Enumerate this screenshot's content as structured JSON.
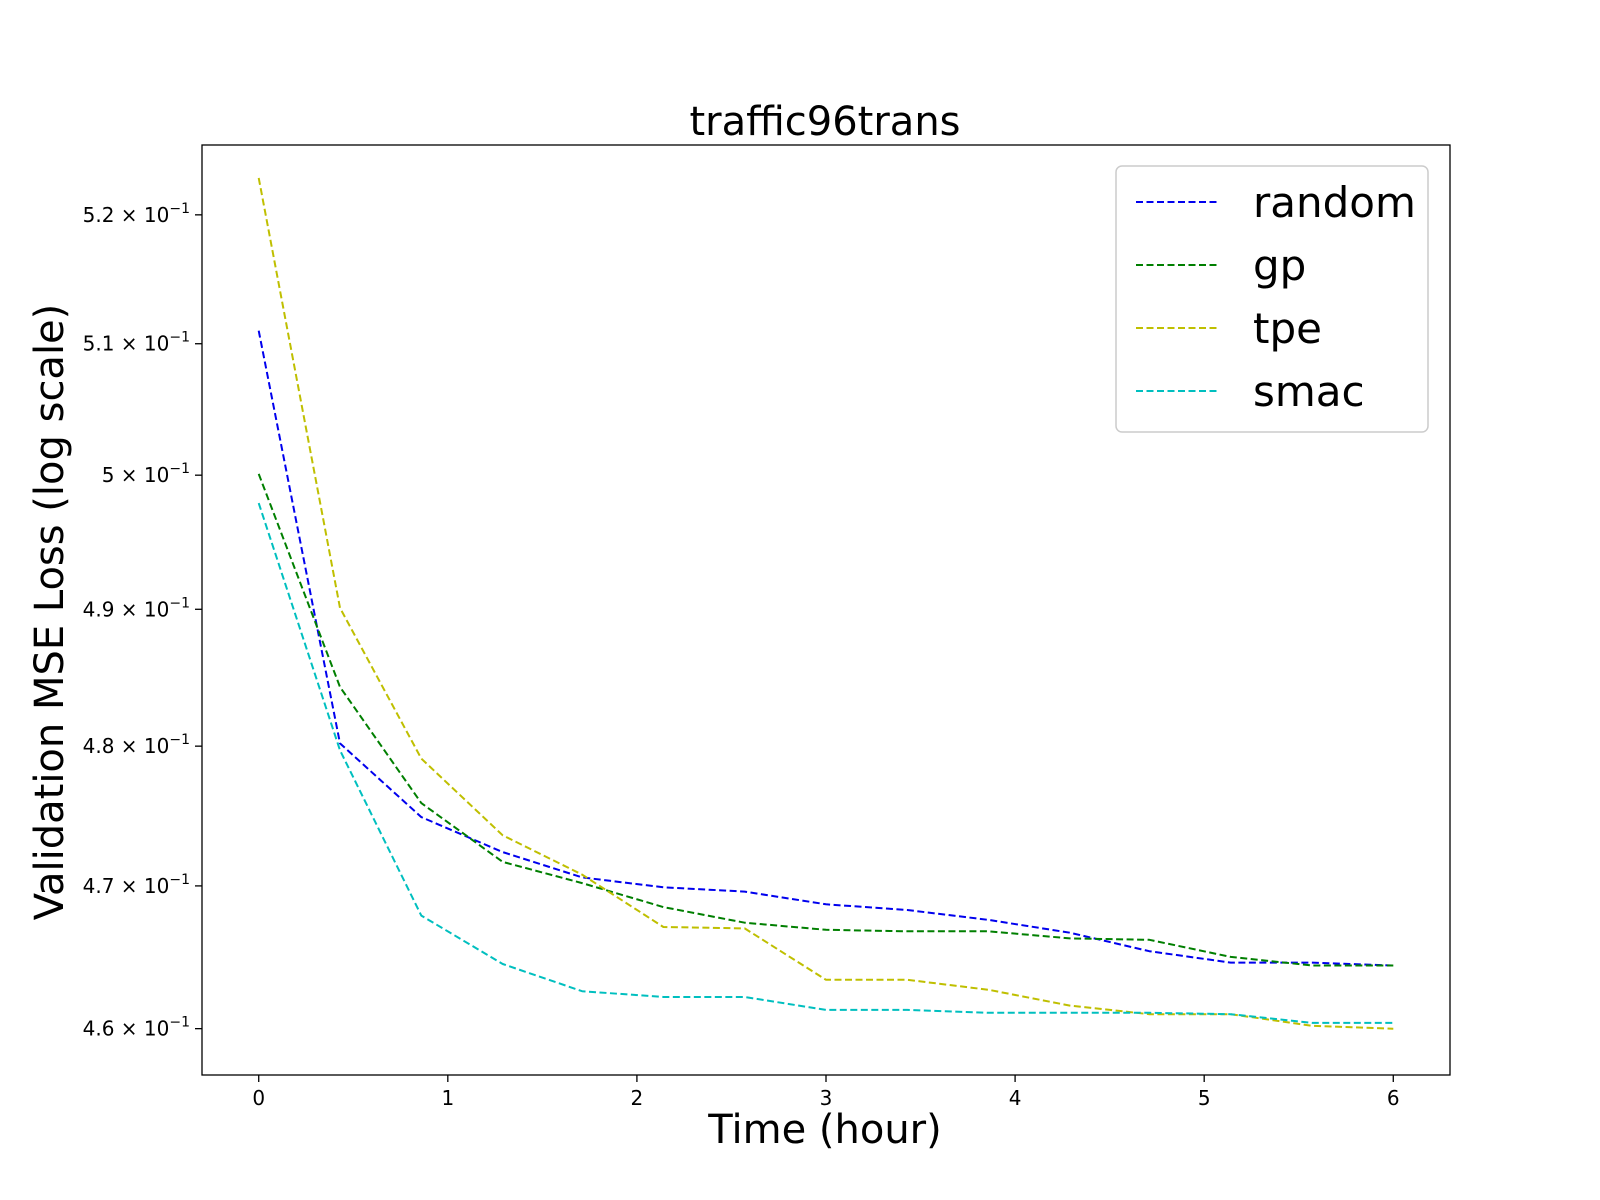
{
  "chart_data": {
    "type": "line",
    "title": "traffic96trans",
    "xlabel": "Time (hour)",
    "ylabel": "Validation MSE Loss (log scale)",
    "yscale": "log",
    "xlim": [
      -0.3,
      6.3
    ],
    "ylim": [
      0.4568,
      0.5255
    ],
    "xticks": [
      0,
      1,
      2,
      3,
      4,
      5,
      6
    ],
    "xtick_labels": [
      "0",
      "1",
      "2",
      "3",
      "4",
      "5",
      "6"
    ],
    "yticks": [
      0.46,
      0.47,
      0.48,
      0.49,
      0.5,
      0.51,
      0.52
    ],
    "ytick_labels": [
      {
        "mantissa": "4.6",
        "base": "10",
        "exp": "−1"
      },
      {
        "mantissa": "4.7",
        "base": "10",
        "exp": "−1"
      },
      {
        "mantissa": "4.8",
        "base": "10",
        "exp": "−1"
      },
      {
        "mantissa": "4.9",
        "base": "10",
        "exp": "−1"
      },
      {
        "mantissa": "5",
        "base": "10",
        "exp": "−1"
      },
      {
        "mantissa": "5.1",
        "base": "10",
        "exp": "−1"
      },
      {
        "mantissa": "5.2",
        "base": "10",
        "exp": "−1"
      }
    ],
    "grid": false,
    "legend_position": "top-right",
    "line_style": "dashed",
    "x": [
      0,
      0.43,
      0.86,
      1.29,
      1.71,
      2.14,
      2.57,
      3.0,
      3.43,
      3.86,
      4.29,
      4.71,
      5.14,
      5.57,
      6.0
    ],
    "series": [
      {
        "name": "random",
        "color": "#0000ee",
        "values": [
          0.511,
          0.4802,
          0.4749,
          0.4724,
          0.4706,
          0.4699,
          0.4696,
          0.4687,
          0.4683,
          0.4676,
          0.4667,
          0.4654,
          0.4646,
          0.4646,
          0.4644
        ]
      },
      {
        "name": "gp",
        "color": "#007f00",
        "values": [
          0.5001,
          0.4843,
          0.4759,
          0.4717,
          0.4702,
          0.4685,
          0.4674,
          0.4669,
          0.4668,
          0.4668,
          0.4663,
          0.4662,
          0.465,
          0.4644,
          0.4644
        ]
      },
      {
        "name": "tpe",
        "color": "#bfbf00",
        "values": [
          0.5229,
          0.4901,
          0.4791,
          0.4736,
          0.4708,
          0.4671,
          0.467,
          0.4634,
          0.4634,
          0.4627,
          0.4616,
          0.461,
          0.461,
          0.4602,
          0.46
        ]
      },
      {
        "name": "smac",
        "color": "#00bfbf",
        "values": [
          0.4979,
          0.4797,
          0.4679,
          0.4645,
          0.4626,
          0.4622,
          0.4622,
          0.4613,
          0.4613,
          0.4611,
          0.4611,
          0.4611,
          0.461,
          0.4604,
          0.4604
        ]
      }
    ]
  }
}
